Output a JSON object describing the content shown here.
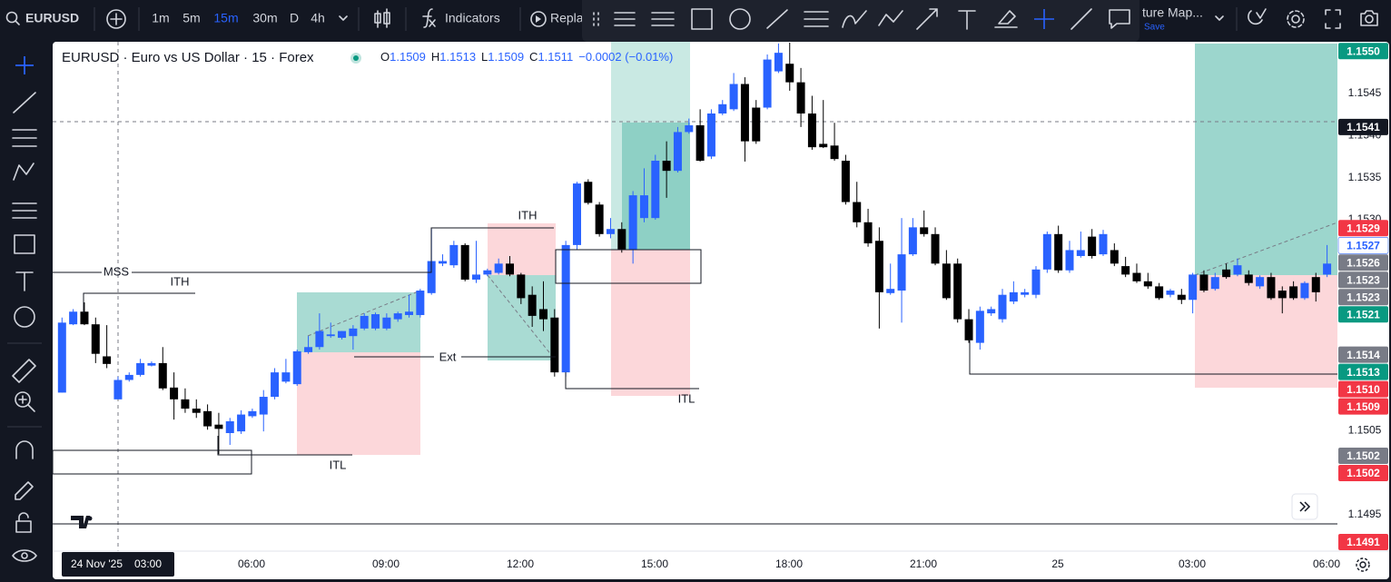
{
  "toolbar": {
    "symbol": "EURUSD",
    "intervals": [
      "1m",
      "5m",
      "15m",
      "30m",
      "D",
      "4h"
    ],
    "active_interval": "15m",
    "indicators": "Indicators",
    "replay": "Replay",
    "layout_name": "ture Map...",
    "save": "Save"
  },
  "legend": {
    "title": "EURUSD · Euro vs US Dollar · 15 · Forex",
    "o_label": "O",
    "open": "1.1509",
    "h_label": "H",
    "high": "1.1513",
    "l_label": "L",
    "low": "1.1509",
    "c_label": "C",
    "close": "1.1511",
    "change": "−0.0002 (−0.01%)"
  },
  "chart": {
    "type": "candlestick",
    "ylim": [
      1.14907,
      1.1551
    ],
    "up_color": "#2962ff",
    "down_color": "#000000",
    "candles": [
      [
        1.15095,
        1.15184,
        1.15095,
        1.15178
      ],
      [
        1.15176,
        1.15194,
        1.15175,
        1.15191
      ],
      [
        1.15191,
        1.15202,
        1.15175,
        1.15176
      ],
      [
        1.15176,
        1.15184,
        1.1513,
        1.15141
      ],
      [
        1.15138,
        1.15175,
        1.15124,
        1.15129
      ],
      [
        1.15087,
        1.15114,
        1.15087,
        1.1511
      ],
      [
        1.1511,
        1.15119,
        1.15108,
        1.15116
      ],
      [
        1.15116,
        1.15135,
        1.15114,
        1.1513
      ],
      [
        1.15127,
        1.15132,
        1.15126,
        1.1513
      ],
      [
        1.1513,
        1.15149,
        1.15098,
        1.151
      ],
      [
        1.15101,
        1.15119,
        1.15063,
        1.15087
      ],
      [
        1.15087,
        1.151,
        1.15071,
        1.15076
      ],
      [
        1.15076,
        1.15087,
        1.15065,
        1.15071
      ],
      [
        1.15073,
        1.15081,
        1.15051,
        1.15055
      ],
      [
        1.15057,
        1.15071,
        1.15022,
        1.15052
      ],
      [
        1.15047,
        1.15065,
        1.15033,
        1.15061
      ],
      [
        1.15049,
        1.15074,
        1.15046,
        1.15069
      ],
      [
        1.15067,
        1.15076,
        1.15065,
        1.15073
      ],
      [
        1.15069,
        1.15098,
        1.15049,
        1.1509
      ],
      [
        1.1509,
        1.15124,
        1.15087,
        1.15119
      ],
      [
        1.15108,
        1.15135,
        1.15106,
        1.15119
      ],
      [
        1.15105,
        1.15146,
        1.15103,
        1.15144
      ],
      [
        1.15143,
        1.15162,
        1.15141,
        1.15149
      ],
      [
        1.15149,
        1.15189,
        1.15146,
        1.15168
      ],
      [
        1.15162,
        1.15178,
        1.1516,
        1.15164
      ],
      [
        1.1516,
        1.15168,
        1.15158,
        1.15168
      ],
      [
        1.15162,
        1.15175,
        1.15146,
        1.15171
      ],
      [
        1.15171,
        1.15189,
        1.15169,
        1.15186
      ],
      [
        1.15171,
        1.1519,
        1.15169,
        1.15188
      ],
      [
        1.15171,
        1.15189,
        1.15169,
        1.15184
      ],
      [
        1.15182,
        1.15191,
        1.15179,
        1.15189
      ],
      [
        1.15187,
        1.15211,
        1.15184,
        1.15191
      ],
      [
        1.15187,
        1.15218,
        1.15184,
        1.15216
      ],
      [
        1.15213,
        1.15289,
        1.15211,
        1.15251
      ],
      [
        1.15248,
        1.15259,
        1.15245,
        1.15251
      ],
      [
        1.15246,
        1.15275,
        1.15243,
        1.1527
      ],
      [
        1.1527,
        1.15272,
        1.15227,
        1.15229
      ],
      [
        1.15229,
        1.15275,
        1.15225,
        1.15235
      ],
      [
        1.15235,
        1.15242,
        1.15233,
        1.1524
      ],
      [
        1.15237,
        1.15254,
        1.15235,
        1.15248
      ],
      [
        1.15248,
        1.15257,
        1.15233,
        1.15235
      ],
      [
        1.15235,
        1.15237,
        1.152,
        1.15207
      ],
      [
        1.15211,
        1.15221,
        1.15173,
        1.15186
      ],
      [
        1.15194,
        1.15227,
        1.15168,
        1.15182
      ],
      [
        1.15184,
        1.15194,
        1.15114,
        1.15119
      ],
      [
        1.15119,
        1.15275,
        1.15114,
        1.1527
      ],
      [
        1.1527,
        1.15345,
        1.15264,
        1.15343
      ],
      [
        1.15345,
        1.15348,
        1.15318,
        1.1532
      ],
      [
        1.15318,
        1.15321,
        1.1528,
        1.15283
      ],
      [
        1.15283,
        1.15302,
        1.15278,
        1.15289
      ],
      [
        1.15289,
        1.15297,
        1.15261,
        1.15264
      ],
      [
        1.15264,
        1.15334,
        1.15248,
        1.15329
      ],
      [
        1.15302,
        1.15361,
        1.15297,
        1.15329
      ],
      [
        1.15302,
        1.15377,
        1.153,
        1.1537
      ],
      [
        1.1537,
        1.15393,
        1.15326,
        1.15358
      ],
      [
        1.15358,
        1.1541,
        1.15356,
        1.15404
      ],
      [
        1.15404,
        1.1542,
        1.15402,
        1.15412
      ],
      [
        1.15412,
        1.15431,
        1.15369,
        1.1537
      ],
      [
        1.15375,
        1.15431,
        1.15372,
        1.15426
      ],
      [
        1.15426,
        1.15442,
        1.15424,
        1.15437
      ],
      [
        1.15431,
        1.15474,
        1.15429,
        1.15461
      ],
      [
        1.15461,
        1.15469,
        1.15369,
        1.15393
      ],
      [
        1.15433,
        1.15442,
        1.1539,
        1.15393
      ],
      [
        1.15433,
        1.15496,
        1.15431,
        1.1549
      ],
      [
        1.15476,
        1.15509,
        1.15474,
        1.15498
      ],
      [
        1.15485,
        1.1551,
        1.15453,
        1.15463
      ],
      [
        1.15463,
        1.1548,
        1.1541,
        1.15426
      ],
      [
        1.15426,
        1.15447,
        1.15383,
        1.15386
      ],
      [
        1.1539,
        1.15442,
        1.15385,
        1.15386
      ],
      [
        1.15388,
        1.15415,
        1.1537,
        1.15372
      ],
      [
        1.1537,
        1.15377,
        1.15318,
        1.15321
      ],
      [
        1.15321,
        1.15345,
        1.15291,
        1.15297
      ],
      [
        1.15297,
        1.15313,
        1.15268,
        1.15272
      ],
      [
        1.15275,
        1.15291,
        1.15171,
        1.15214
      ],
      [
        1.15213,
        1.15248,
        1.15211,
        1.15218
      ],
      [
        1.15216,
        1.15302,
        1.15178,
        1.15259
      ],
      [
        1.15259,
        1.15302,
        1.15257,
        1.15291
      ],
      [
        1.15291,
        1.15311,
        1.1528,
        1.15283
      ],
      [
        1.15283,
        1.15291,
        1.15246,
        1.15248
      ],
      [
        1.15248,
        1.15264,
        1.15205,
        1.15207
      ],
      [
        1.15248,
        1.15254,
        1.15178,
        1.15182
      ],
      [
        1.15182,
        1.15194,
        1.15154,
        1.15157
      ],
      [
        1.15154,
        1.15197,
        1.15146,
        1.15192
      ],
      [
        1.15189,
        1.15197,
        1.15186,
        1.15194
      ],
      [
        1.15182,
        1.15218,
        1.15178,
        1.15211
      ],
      [
        1.15203,
        1.15227,
        1.152,
        1.15214
      ],
      [
        1.15211,
        1.15218,
        1.15208,
        1.15214
      ],
      [
        1.15211,
        1.15245,
        1.15207,
        1.15241
      ],
      [
        1.15241,
        1.15286,
        1.15237,
        1.15283
      ],
      [
        1.15283,
        1.15293,
        1.15237,
        1.1524
      ],
      [
        1.1524,
        1.15275,
        1.15237,
        1.15264
      ],
      [
        1.15257,
        1.15286,
        1.15255,
        1.15264
      ],
      [
        1.1528,
        1.15289,
        1.15254,
        1.15257
      ],
      [
        1.15259,
        1.15288,
        1.15257,
        1.15283
      ],
      [
        1.15264,
        1.15272,
        1.15245,
        1.15248
      ],
      [
        1.15245,
        1.15256,
        1.15232,
        1.15235
      ],
      [
        1.15237,
        1.15248,
        1.15225,
        1.15227
      ],
      [
        1.15227,
        1.15237,
        1.15218,
        1.15221
      ],
      [
        1.15221,
        1.15225,
        1.15205,
        1.15207
      ],
      [
        1.15211,
        1.15218,
        1.15208,
        1.15216
      ],
      [
        1.15211,
        1.15218,
        1.152,
        1.15205
      ],
      [
        1.15205,
        1.15237,
        1.15189,
        1.15235
      ],
      [
        1.15235,
        1.1524,
        1.15214,
        1.15216
      ],
      [
        1.15218,
        1.15237,
        1.15216,
        1.15232
      ],
      [
        1.15241,
        1.15248,
        1.1523,
        1.15232
      ],
      [
        1.15235,
        1.15254,
        1.15233,
        1.15246
      ],
      [
        1.15235,
        1.1524,
        1.15222,
        1.15225
      ],
      [
        1.15221,
        1.15234,
        1.15218,
        1.15232
      ],
      [
        1.15232,
        1.15237,
        1.15205,
        1.15207
      ],
      [
        1.15216,
        1.15221,
        1.15189,
        1.15207
      ],
      [
        1.15221,
        1.15227,
        1.15205,
        1.15207
      ],
      [
        1.15207,
        1.15227,
        1.15205,
        1.15225
      ],
      [
        1.15232,
        1.15237,
        1.15203,
        1.15214
      ],
      [
        1.15235,
        1.1527,
        1.15232,
        1.15248
      ]
    ],
    "price_ticks": [
      {
        "value": 1.1545,
        "label": "1.1545"
      },
      {
        "value": 1.154,
        "label": "1.1540"
      },
      {
        "value": 1.1535,
        "label": "1.1535"
      },
      {
        "value": 1.153,
        "label": "1.1530"
      },
      {
        "value": 1.1505,
        "label": "1.1505"
      },
      {
        "value": 1.1495,
        "label": "1.1495"
      }
    ],
    "price_tags": [
      {
        "value": 1.155,
        "label": "1.1550",
        "color": "#089981"
      },
      {
        "value": 1.1541,
        "label": "1.1541",
        "color": "#131722"
      },
      {
        "value": 1.1529,
        "label": "1.1529",
        "color": "#f23645"
      },
      {
        "value": 1.1527,
        "label": "1.1527",
        "color": "#ffffff",
        "text_color": "#2962ff"
      },
      {
        "value": 1.1526,
        "label": "1.1526",
        "color": "#787b86"
      },
      {
        "value": 1.1523,
        "label": "1.1523",
        "color": "#787b86"
      },
      {
        "value": 1.1523,
        "label": "1.1523",
        "color": "#787b86"
      },
      {
        "value": 1.1521,
        "label": "1.1521",
        "color": "#089981"
      },
      {
        "value": 1.1514,
        "label": "1.1514",
        "color": "#787b86"
      },
      {
        "value": 1.1513,
        "label": "1.1513",
        "color": "#089981"
      },
      {
        "value": 1.151,
        "label": "1.1510",
        "color": "#f23645"
      },
      {
        "value": 1.1509,
        "label": "1.1509",
        "color": "#f23645"
      },
      {
        "value": 1.1502,
        "label": "1.1502",
        "color": "#787b86"
      },
      {
        "value": 1.1502,
        "label": "1.1502",
        "color": "#f23645"
      },
      {
        "value": 1.1491,
        "label": "1.1491",
        "color": "#f23645"
      }
    ],
    "time_labels": [
      "06:00",
      "09:00",
      "12:00",
      "15:00",
      "18:00",
      "21:00",
      "25",
      "03:00",
      "06:00"
    ],
    "crosshair_date": "24 Nov '25",
    "crosshair_time": "03:00"
  },
  "annotations": [
    "MSS",
    "ITH",
    "ITH",
    "Ext",
    "ITL",
    "ITL"
  ]
}
